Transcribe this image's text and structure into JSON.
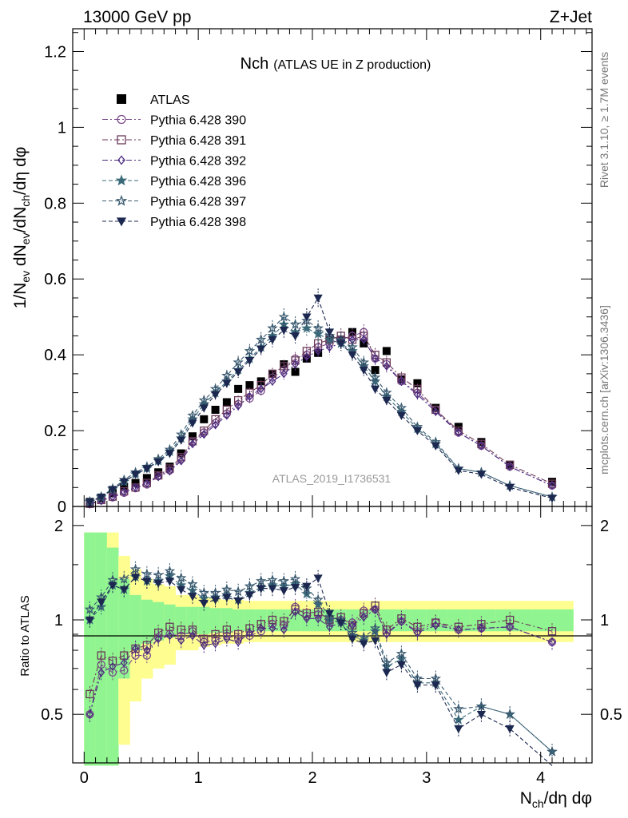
{
  "header": {
    "left": "13000 GeV pp",
    "right": "Z+Jet"
  },
  "title": {
    "main": "Nch",
    "sub": "(ATLAS UE in Z production)"
  },
  "side_labels": {
    "rivet": "Rivet 3.1.10, ≥ 1.7M events",
    "mcplots": "mcplots.cern.ch [arXiv:1306.3436]"
  },
  "watermark": "ATLAS_2019_I1736531",
  "ratio_ylabel": "Ratio to ATLAS",
  "colors": {
    "band_inner": "#90f590",
    "band_outer": "#fdfd90",
    "data": "#000000"
  },
  "chart_data": [
    {
      "type": "scatter",
      "title": "Nch (ATLAS UE in Z production)",
      "xlabel": "N_ch/dη dφ",
      "ylabel": "1/N_ev dN_ev/dN_ch/dη dφ",
      "xlim": [
        -0.1,
        4.45
      ],
      "ylim": [
        0,
        1.26
      ],
      "yticks": [
        "0",
        "0.2",
        "0.4",
        "0.6",
        "0.8",
        "1",
        "1.2"
      ],
      "xticks": [
        "0",
        "1",
        "2",
        "3",
        "4"
      ],
      "legend_position": "top-left",
      "x": [
        0.05,
        0.15,
        0.25,
        0.35,
        0.45,
        0.55,
        0.65,
        0.75,
        0.85,
        0.95,
        1.05,
        1.15,
        1.25,
        1.35,
        1.45,
        1.55,
        1.65,
        1.75,
        1.85,
        1.95,
        2.05,
        2.15,
        2.25,
        2.35,
        2.45,
        2.55,
        2.65,
        2.78,
        2.92,
        3.08,
        3.28,
        3.48,
        3.73,
        4.1
      ],
      "series": [
        {
          "name": "ATLAS",
          "marker": "square-filled",
          "color": "#000000",
          "values": [
            0.012,
            0.022,
            0.035,
            0.052,
            0.062,
            0.075,
            0.09,
            0.105,
            0.14,
            0.185,
            0.23,
            0.255,
            0.275,
            0.31,
            0.32,
            0.33,
            0.35,
            0.375,
            0.355,
            0.39,
            0.405,
            0.44,
            0.44,
            0.46,
            0.43,
            0.36,
            0.41,
            0.335,
            0.325,
            0.26,
            0.21,
            0.17,
            0.11,
            0.065
          ]
        },
        {
          "name": "Pythia 6.428 390",
          "marker": "circle-open",
          "line": "dash-dot",
          "color": "#7a4a8a",
          "values": [
            0.006,
            0.016,
            0.024,
            0.036,
            0.048,
            0.058,
            0.08,
            0.095,
            0.125,
            0.17,
            0.195,
            0.22,
            0.245,
            0.27,
            0.285,
            0.305,
            0.34,
            0.36,
            0.39,
            0.4,
            0.42,
            0.43,
            0.44,
            0.45,
            0.46,
            0.39,
            0.375,
            0.33,
            0.3,
            0.255,
            0.195,
            0.16,
            0.105,
            0.055
          ]
        },
        {
          "name": "Pythia 6.428 391",
          "marker": "square-open",
          "line": "dash-dot",
          "color": "#6b3a5a",
          "values": [
            0.007,
            0.017,
            0.026,
            0.04,
            0.05,
            0.062,
            0.082,
            0.1,
            0.13,
            0.172,
            0.2,
            0.23,
            0.255,
            0.28,
            0.3,
            0.32,
            0.35,
            0.37,
            0.385,
            0.41,
            0.43,
            0.44,
            0.45,
            0.44,
            0.45,
            0.4,
            0.38,
            0.34,
            0.31,
            0.255,
            0.2,
            0.165,
            0.11,
            0.06
          ]
        },
        {
          "name": "Pythia 6.428 392",
          "marker": "diamond-open",
          "line": "dash-dot",
          "color": "#4a2a80",
          "values": [
            0.006,
            0.015,
            0.025,
            0.038,
            0.05,
            0.06,
            0.078,
            0.093,
            0.12,
            0.165,
            0.19,
            0.215,
            0.24,
            0.265,
            0.29,
            0.31,
            0.33,
            0.35,
            0.375,
            0.395,
            0.41,
            0.42,
            0.43,
            0.44,
            0.44,
            0.39,
            0.37,
            0.33,
            0.295,
            0.25,
            0.195,
            0.16,
            0.105,
            0.055
          ]
        },
        {
          "name": "Pythia 6.428 396",
          "marker": "star-filled",
          "line": "dashed",
          "color": "#3a6a7a",
          "values": [
            0.012,
            0.024,
            0.045,
            0.065,
            0.085,
            0.1,
            0.12,
            0.145,
            0.18,
            0.23,
            0.27,
            0.3,
            0.33,
            0.36,
            0.39,
            0.42,
            0.45,
            0.48,
            0.46,
            0.47,
            0.455,
            0.44,
            0.43,
            0.41,
            0.37,
            0.33,
            0.29,
            0.25,
            0.205,
            0.165,
            0.1,
            0.09,
            0.055,
            0.025
          ]
        },
        {
          "name": "Pythia 6.428 397",
          "marker": "star-open",
          "line": "dashed",
          "color": "#3a5a70",
          "values": [
            0.013,
            0.026,
            0.047,
            0.07,
            0.09,
            0.105,
            0.125,
            0.15,
            0.19,
            0.24,
            0.28,
            0.31,
            0.345,
            0.38,
            0.41,
            0.44,
            0.47,
            0.5,
            0.48,
            0.49,
            0.47,
            0.45,
            0.44,
            0.42,
            0.38,
            0.34,
            0.3,
            0.26,
            0.21,
            0.17,
            0.1,
            0.09,
            0.055,
            0.025
          ]
        },
        {
          "name": "Pythia 6.428 398",
          "marker": "triangle-down-filled",
          "line": "dashed",
          "color": "#1c2850",
          "values": [
            0.012,
            0.025,
            0.045,
            0.065,
            0.085,
            0.1,
            0.118,
            0.14,
            0.175,
            0.22,
            0.26,
            0.295,
            0.325,
            0.355,
            0.385,
            0.415,
            0.44,
            0.465,
            0.45,
            0.5,
            0.55,
            0.46,
            0.43,
            0.4,
            0.36,
            0.31,
            0.28,
            0.24,
            0.2,
            0.16,
            0.095,
            0.085,
            0.05,
            0.022
          ]
        }
      ]
    },
    {
      "type": "scatter",
      "title": "",
      "xlabel": "N_ch/dη dφ",
      "ylabel": "Ratio to ATLAS",
      "xlim": [
        -0.1,
        4.45
      ],
      "ylim": [
        0.35,
        2.3
      ],
      "yticks": [
        "0.5",
        "1",
        "2"
      ],
      "reference_line": 1,
      "band_inner_halfwidth": [
        0.9,
        0.9,
        0.7,
        0.35,
        0.2,
        0.16,
        0.14,
        0.12,
        0.1,
        0.1,
        0.1,
        0.09,
        0.09,
        0.08,
        0.08,
        0.08,
        0.08,
        0.08,
        0.08,
        0.08,
        0.08,
        0.08,
        0.08,
        0.08,
        0.08,
        0.08,
        0.08,
        0.08,
        0.08,
        0.08,
        0.08,
        0.08,
        0.08,
        0.08
      ],
      "band_outer_halfwidth": [
        0.9,
        0.9,
        0.9,
        0.6,
        0.45,
        0.35,
        0.3,
        0.28,
        0.2,
        0.2,
        0.18,
        0.17,
        0.16,
        0.16,
        0.15,
        0.15,
        0.15,
        0.15,
        0.15,
        0.15,
        0.15,
        0.15,
        0.15,
        0.15,
        0.15,
        0.15,
        0.15,
        0.15,
        0.15,
        0.15,
        0.15,
        0.15,
        0.15,
        0.15
      ],
      "series": [
        {
          "name": "Pythia 6.428 390",
          "values": [
            0.5,
            0.72,
            0.68,
            0.69,
            0.77,
            0.77,
            0.88,
            0.9,
            0.89,
            0.92,
            0.85,
            0.86,
            0.89,
            0.87,
            0.89,
            0.92,
            0.97,
            0.96,
            1.1,
            1.03,
            1.04,
            0.98,
            1.0,
            0.98,
            1.07,
            1.08,
            0.91,
            0.99,
            0.92,
            0.98,
            0.93,
            0.94,
            0.95,
            0.85
          ]
        },
        {
          "name": "Pythia 6.428 391",
          "values": [
            0.58,
            0.77,
            0.74,
            0.77,
            0.81,
            0.83,
            0.91,
            0.95,
            0.93,
            0.93,
            0.87,
            0.9,
            0.93,
            0.9,
            0.94,
            0.97,
            1.0,
            0.99,
            1.08,
            1.05,
            1.06,
            1.0,
            1.02,
            0.96,
            1.05,
            1.11,
            0.93,
            1.01,
            0.95,
            0.98,
            0.95,
            0.97,
            1.0,
            0.92
          ]
        },
        {
          "name": "Pythia 6.428 392",
          "values": [
            0.5,
            0.68,
            0.71,
            0.73,
            0.81,
            0.8,
            0.87,
            0.89,
            0.86,
            0.89,
            0.83,
            0.84,
            0.87,
            0.85,
            0.91,
            0.94,
            0.94,
            0.93,
            1.06,
            1.01,
            1.01,
            0.95,
            0.98,
            0.96,
            1.02,
            1.08,
            0.9,
            0.99,
            0.91,
            0.96,
            0.93,
            0.94,
            0.95,
            0.85
          ]
        },
        {
          "name": "Pythia 6.428 396",
          "values": [
            1.0,
            1.1,
            1.29,
            1.25,
            1.37,
            1.33,
            1.33,
            1.38,
            1.29,
            1.24,
            1.17,
            1.18,
            1.2,
            1.16,
            1.22,
            1.27,
            1.29,
            1.28,
            1.3,
            1.21,
            1.12,
            1.0,
            0.98,
            0.89,
            0.86,
            0.92,
            0.71,
            0.75,
            0.63,
            0.63,
            0.48,
            0.53,
            0.5,
            0.38
          ]
        },
        {
          "name": "Pythia 6.428 397",
          "values": [
            1.08,
            1.18,
            1.34,
            1.35,
            1.45,
            1.4,
            1.39,
            1.43,
            1.36,
            1.3,
            1.22,
            1.22,
            1.25,
            1.23,
            1.28,
            1.33,
            1.34,
            1.33,
            1.35,
            1.26,
            1.16,
            1.02,
            1.0,
            0.91,
            0.88,
            0.94,
            0.73,
            0.78,
            0.65,
            0.65,
            0.52,
            0.53,
            0.5,
            0.38
          ]
        },
        {
          "name": "Pythia 6.428 398",
          "values": [
            1.0,
            1.14,
            1.29,
            1.25,
            1.37,
            1.33,
            1.31,
            1.33,
            1.25,
            1.19,
            1.13,
            1.16,
            1.18,
            1.15,
            1.2,
            1.26,
            1.26,
            1.24,
            1.27,
            1.28,
            1.36,
            1.05,
            0.98,
            0.87,
            0.84,
            0.86,
            0.68,
            0.72,
            0.62,
            0.62,
            0.45,
            0.5,
            0.45,
            0.34
          ]
        }
      ]
    }
  ]
}
